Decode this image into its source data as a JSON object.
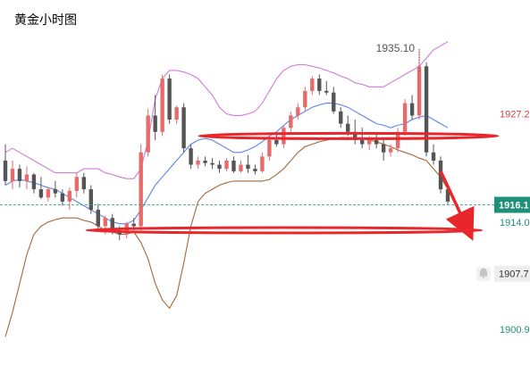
{
  "chart_data": {
    "type": "candlestick",
    "title": "黄金小时图",
    "colors": {
      "title": "#e8453c",
      "up": "#e86a6a",
      "down": "#555555",
      "boll_upper": "#d07ad8",
      "boll_mid": "#5a84e8",
      "boll_lower": "#a5673a",
      "current_price_line": "#39a389",
      "current_price_label_bg": "#1e8f78",
      "annotation": "#e8262b",
      "axis_text": "#1e8f78",
      "axis_text_dark": "#333333"
    },
    "y_axis": {
      "ylim": [
        1897.0,
        1940.0
      ],
      "ticks": [
        "1927.2",
        "1914.0",
        "1900.9"
      ],
      "position": "right"
    },
    "current_price": {
      "value": 1916.1,
      "label": "1916.1"
    },
    "secondary_price": {
      "value": 1907.7,
      "label": "1907.7"
    },
    "high_label": {
      "value": 1935.1,
      "label": "1935.10",
      "candle_index": 58
    },
    "candles": [
      [
        1921.5,
        1923.5,
        1918.5,
        1919.0
      ],
      [
        1919.0,
        1921.5,
        1918.0,
        1920.5
      ],
      [
        1920.5,
        1921.0,
        1918.2,
        1919.0
      ],
      [
        1919.0,
        1920.8,
        1918.0,
        1919.8
      ],
      [
        1919.8,
        1920.0,
        1917.5,
        1918.0
      ],
      [
        1918.0,
        1919.5,
        1916.8,
        1917.0
      ],
      [
        1917.0,
        1918.2,
        1916.5,
        1918.0
      ],
      [
        1918.0,
        1919.0,
        1917.0,
        1917.5
      ],
      [
        1917.5,
        1918.0,
        1916.0,
        1916.5
      ],
      [
        1916.5,
        1918.2,
        1915.5,
        1917.8
      ],
      [
        1917.8,
        1920.0,
        1917.0,
        1919.5
      ],
      [
        1919.5,
        1920.0,
        1917.5,
        1918.0
      ],
      [
        1918.0,
        1918.5,
        1915.0,
        1915.5
      ],
      [
        1915.5,
        1916.2,
        1913.0,
        1913.5
      ],
      [
        1913.5,
        1914.8,
        1912.5,
        1914.5
      ],
      [
        1914.5,
        1915.0,
        1912.5,
        1913.0
      ],
      [
        1913.0,
        1913.5,
        1911.8,
        1912.5
      ],
      [
        1912.5,
        1914.0,
        1912.0,
        1913.8
      ],
      [
        1913.8,
        1914.5,
        1913.0,
        1913.5
      ],
      [
        1913.5,
        1923.5,
        1913.0,
        1922.5
      ],
      [
        1922.5,
        1927.8,
        1922.0,
        1927.0
      ],
      [
        1927.0,
        1929.5,
        1924.0,
        1925.0
      ],
      [
        1925.0,
        1932.0,
        1924.5,
        1931.5
      ],
      [
        1931.5,
        1932.0,
        1926.0,
        1926.5
      ],
      [
        1926.5,
        1928.2,
        1926.0,
        1928.0
      ],
      [
        1928.0,
        1928.5,
        1922.5,
        1923.0
      ],
      [
        1923.0,
        1923.5,
        1920.5,
        1921.0
      ],
      [
        1921.0,
        1922.0,
        1920.5,
        1921.5
      ],
      [
        1921.5,
        1922.0,
        1920.8,
        1921.2
      ],
      [
        1921.2,
        1921.8,
        1920.5,
        1921.0
      ],
      [
        1921.0,
        1921.5,
        1920.0,
        1920.5
      ],
      [
        1920.5,
        1921.8,
        1920.2,
        1921.5
      ],
      [
        1921.5,
        1922.0,
        1920.0,
        1920.2
      ],
      [
        1920.2,
        1921.5,
        1920.0,
        1921.0
      ],
      [
        1921.0,
        1922.2,
        1920.0,
        1920.5
      ],
      [
        1920.5,
        1921.0,
        1919.8,
        1920.2
      ],
      [
        1920.2,
        1922.5,
        1920.0,
        1922.0
      ],
      [
        1922.0,
        1924.5,
        1921.5,
        1924.0
      ],
      [
        1924.0,
        1925.0,
        1923.2,
        1923.5
      ],
      [
        1923.5,
        1925.8,
        1923.0,
        1925.5
      ],
      [
        1925.5,
        1927.5,
        1925.0,
        1927.0
      ],
      [
        1927.0,
        1928.5,
        1926.5,
        1928.0
      ],
      [
        1928.0,
        1930.5,
        1927.5,
        1930.0
      ],
      [
        1930.0,
        1931.8,
        1929.5,
        1931.5
      ],
      [
        1931.5,
        1932.0,
        1929.5,
        1930.0
      ],
      [
        1930.0,
        1931.2,
        1929.5,
        1929.8
      ],
      [
        1929.8,
        1930.5,
        1927.2,
        1927.5
      ],
      [
        1927.5,
        1928.0,
        1925.5,
        1926.0
      ],
      [
        1926.0,
        1927.0,
        1924.5,
        1925.0
      ],
      [
        1925.0,
        1926.5,
        1923.5,
        1924.0
      ],
      [
        1924.0,
        1925.5,
        1923.0,
        1923.5
      ],
      [
        1923.5,
        1924.5,
        1922.8,
        1924.0
      ],
      [
        1924.0,
        1925.0,
        1923.0,
        1923.5
      ],
      [
        1923.5,
        1924.0,
        1921.5,
        1922.5
      ],
      [
        1922.5,
        1923.5,
        1922.0,
        1923.0
      ],
      [
        1923.0,
        1925.5,
        1922.5,
        1925.0
      ],
      [
        1925.0,
        1929.0,
        1924.5,
        1928.5
      ],
      [
        1928.5,
        1929.5,
        1926.5,
        1927.0
      ],
      [
        1927.0,
        1935.1,
        1926.5,
        1933.0
      ],
      [
        1933.0,
        1933.5,
        1922.0,
        1922.5
      ],
      [
        1922.5,
        1923.5,
        1921.0,
        1921.5
      ],
      [
        1921.5,
        1922.0,
        1917.5,
        1918.0
      ],
      [
        1918.0,
        1918.5,
        1916.2,
        1916.5
      ]
    ],
    "bollinger": {
      "upper": [
        1922.5,
        1923.0,
        1922.5,
        1922.0,
        1921.5,
        1921.0,
        1920.5,
        1920.0,
        1920.0,
        1920.0,
        1920.0,
        1920.5,
        1920.5,
        1920.5,
        1920.0,
        1919.8,
        1919.5,
        1919.3,
        1919.3,
        1920.5,
        1924.0,
        1929.0,
        1931.5,
        1932.5,
        1932.5,
        1932.3,
        1932.0,
        1931.5,
        1930.5,
        1929.5,
        1928.0,
        1927.2,
        1927.0,
        1927.0,
        1927.2,
        1927.5,
        1928.5,
        1930.0,
        1931.5,
        1932.5,
        1933.0,
        1933.2,
        1933.2,
        1933.0,
        1932.8,
        1932.5,
        1932.2,
        1931.8,
        1931.5,
        1931.0,
        1930.8,
        1930.5,
        1930.5,
        1930.5,
        1931.0,
        1931.5,
        1932.0,
        1932.5,
        1933.0,
        1934.0,
        1935.0,
        1935.5,
        1936.0
      ],
      "mid": [
        1918.5,
        1919.0,
        1919.2,
        1919.0,
        1918.8,
        1918.5,
        1918.2,
        1918.0,
        1917.5,
        1917.0,
        1916.5,
        1916.0,
        1915.5,
        1915.0,
        1914.5,
        1914.0,
        1913.8,
        1913.8,
        1914.2,
        1915.5,
        1917.0,
        1918.5,
        1919.5,
        1920.5,
        1921.5,
        1922.5,
        1923.5,
        1924.0,
        1924.2,
        1924.0,
        1923.5,
        1923.0,
        1922.5,
        1922.5,
        1922.8,
        1923.2,
        1923.8,
        1924.5,
        1925.0,
        1925.8,
        1926.5,
        1927.0,
        1927.5,
        1928.0,
        1928.3,
        1928.5,
        1928.5,
        1928.3,
        1928.0,
        1927.5,
        1927.0,
        1926.5,
        1926.0,
        1925.8,
        1925.5,
        1925.8,
        1926.0,
        1926.5,
        1926.8,
        1927.0,
        1926.5,
        1926.0,
        1925.5
      ],
      "lower": [
        1900.0,
        1903.0,
        1906.5,
        1910.0,
        1912.5,
        1913.5,
        1914.0,
        1914.3,
        1914.5,
        1914.5,
        1914.5,
        1914.2,
        1914.0,
        1913.5,
        1913.0,
        1912.8,
        1912.5,
        1912.5,
        1912.8,
        1911.5,
        1909.5,
        1906.5,
        1904.5,
        1903.5,
        1905.0,
        1909.0,
        1913.5,
        1916.5,
        1917.5,
        1918.0,
        1918.5,
        1918.8,
        1919.0,
        1919.0,
        1919.0,
        1919.0,
        1919.0,
        1919.2,
        1919.8,
        1920.5,
        1921.5,
        1922.5,
        1923.2,
        1923.5,
        1923.8,
        1924.0,
        1924.2,
        1924.3,
        1924.3,
        1924.3,
        1924.2,
        1924.0,
        1923.8,
        1923.5,
        1923.2,
        1922.8,
        1922.5,
        1922.2,
        1921.8,
        1921.5,
        1920.5,
        1919.5,
        1918.0
      ]
    },
    "annotations": {
      "resistance_level": 1924.5,
      "support_level": 1913.0,
      "arrow_from": 1920.2,
      "arrow_to": 1913.0
    }
  },
  "ui": {
    "bell_icon": "bell-icon"
  }
}
